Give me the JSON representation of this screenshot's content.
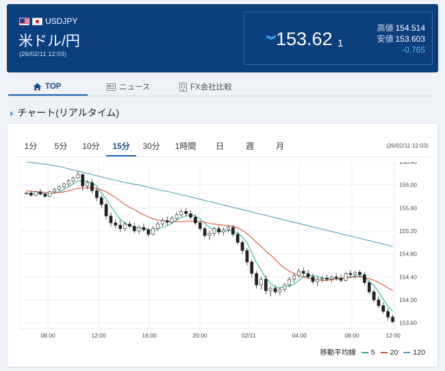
{
  "header": {
    "pair_code": "USDJPY",
    "pair_name": "米ドル/円",
    "timestamp": "(26/02/11 12:03)",
    "price_main": "153.62",
    "price_last_digit": "1",
    "high_label": "高値",
    "high_value": "154.514",
    "low_label": "安値",
    "low_value": "153.603",
    "change": "-0.765",
    "up_color": "#4fb0ff"
  },
  "tabs": [
    {
      "label": "TOP",
      "icon": "home-icon",
      "active": true
    },
    {
      "label": "ニュース",
      "icon": "newspaper-icon",
      "active": false
    },
    {
      "label": "FX会社比較",
      "icon": "building-icon",
      "active": false
    }
  ],
  "section": {
    "title": "チャート(リアルタイム)"
  },
  "intervals": [
    "1分",
    "5分",
    "10分",
    "15分",
    "30分",
    "1時間",
    "日",
    "週",
    "月"
  ],
  "active_interval": "15分",
  "chart_timestamp": "(26/02/11 12:03)",
  "legend": {
    "label": "移動平均線",
    "items": [
      "5",
      "20",
      "120"
    ]
  },
  "chart_data": {
    "type": "candlestick",
    "x_ticks": [
      "08:00",
      "12:00",
      "16:00",
      "20:00",
      "02/11",
      "04:00",
      "08:00",
      "12:00"
    ],
    "y_ticks": [
      "156.40",
      "156.00",
      "155.60",
      "155.20",
      "154.80",
      "154.40",
      "154.00",
      "153.60"
    ],
    "ylim": [
      153.5,
      156.4
    ],
    "up_color": "#ffffff",
    "down_color": "#222222",
    "candles": [
      [
        155.86,
        155.88,
        155.83,
        155.86
      ],
      [
        155.86,
        155.89,
        155.8,
        155.82
      ],
      [
        155.82,
        155.9,
        155.8,
        155.88
      ],
      [
        155.88,
        155.93,
        155.82,
        155.84
      ],
      [
        155.84,
        155.87,
        155.78,
        155.8
      ],
      [
        155.8,
        155.9,
        155.79,
        155.88
      ],
      [
        155.88,
        155.95,
        155.85,
        155.92
      ],
      [
        155.92,
        155.99,
        155.9,
        155.97
      ],
      [
        155.97,
        156.04,
        155.94,
        156.02
      ],
      [
        156.02,
        156.1,
        155.98,
        156.07
      ],
      [
        156.07,
        156.15,
        156.03,
        156.12
      ],
      [
        156.12,
        156.24,
        156.1,
        156.18
      ],
      [
        156.18,
        156.22,
        155.9,
        155.98
      ],
      [
        155.98,
        156.08,
        155.92,
        156.04
      ],
      [
        156.04,
        156.1,
        155.85,
        155.9
      ],
      [
        155.9,
        155.95,
        155.72,
        155.78
      ],
      [
        155.78,
        155.82,
        155.6,
        155.66
      ],
      [
        155.66,
        155.7,
        155.4,
        155.46
      ],
      [
        155.46,
        155.52,
        155.28,
        155.34
      ],
      [
        155.34,
        155.4,
        155.24,
        155.3
      ],
      [
        155.3,
        155.38,
        155.18,
        155.24
      ],
      [
        155.24,
        155.36,
        155.2,
        155.32
      ],
      [
        155.32,
        155.38,
        155.25,
        155.28
      ],
      [
        155.28,
        155.34,
        155.16,
        155.2
      ],
      [
        155.2,
        155.3,
        155.14,
        155.26
      ],
      [
        155.26,
        155.33,
        155.18,
        155.22
      ],
      [
        155.22,
        155.26,
        155.1,
        155.14
      ],
      [
        155.14,
        155.28,
        155.12,
        155.24
      ],
      [
        155.24,
        155.36,
        155.2,
        155.32
      ],
      [
        155.32,
        155.42,
        155.28,
        155.38
      ],
      [
        155.38,
        155.45,
        155.3,
        155.35
      ],
      [
        155.35,
        155.46,
        155.32,
        155.42
      ],
      [
        155.42,
        155.52,
        155.38,
        155.48
      ],
      [
        155.48,
        155.58,
        155.44,
        155.54
      ],
      [
        155.54,
        155.6,
        155.46,
        155.5
      ],
      [
        155.5,
        155.56,
        155.4,
        155.44
      ],
      [
        155.44,
        155.48,
        155.3,
        155.34
      ],
      [
        155.34,
        155.38,
        155.2,
        155.24
      ],
      [
        155.24,
        155.28,
        155.08,
        155.12
      ],
      [
        155.12,
        155.2,
        155.04,
        155.16
      ],
      [
        155.16,
        155.28,
        155.1,
        155.24
      ],
      [
        155.24,
        155.3,
        155.14,
        155.18
      ],
      [
        155.18,
        155.26,
        155.12,
        155.22
      ],
      [
        155.22,
        155.3,
        155.18,
        155.26
      ],
      [
        155.26,
        155.3,
        155.1,
        155.14
      ],
      [
        155.14,
        155.18,
        154.96,
        155.0
      ],
      [
        155.0,
        155.04,
        154.8,
        154.86
      ],
      [
        154.86,
        154.9,
        154.6,
        154.66
      ],
      [
        154.66,
        154.7,
        154.4,
        154.46
      ],
      [
        154.46,
        154.5,
        154.2,
        154.26
      ],
      [
        154.26,
        154.4,
        154.18,
        154.36
      ],
      [
        154.36,
        154.42,
        154.1,
        154.16
      ],
      [
        154.16,
        154.24,
        154.06,
        154.2
      ],
      [
        154.2,
        154.26,
        154.1,
        154.14
      ],
      [
        154.14,
        154.22,
        154.08,
        154.18
      ],
      [
        154.18,
        154.3,
        154.14,
        154.26
      ],
      [
        154.26,
        154.4,
        154.22,
        154.36
      ],
      [
        154.36,
        154.46,
        154.3,
        154.42
      ],
      [
        154.42,
        154.54,
        154.38,
        154.5
      ],
      [
        154.5,
        154.56,
        154.4,
        154.46
      ],
      [
        154.46,
        154.52,
        154.36,
        154.4
      ],
      [
        154.4,
        154.46,
        154.28,
        154.32
      ],
      [
        154.32,
        154.4,
        154.24,
        154.36
      ],
      [
        154.36,
        154.42,
        154.3,
        154.38
      ],
      [
        154.38,
        154.44,
        154.32,
        154.36
      ],
      [
        154.36,
        154.42,
        154.3,
        154.4
      ],
      [
        154.4,
        154.46,
        154.34,
        154.38
      ],
      [
        154.38,
        154.44,
        154.3,
        154.34
      ],
      [
        154.34,
        154.48,
        154.32,
        154.46
      ],
      [
        154.46,
        154.52,
        154.4,
        154.44
      ],
      [
        154.44,
        154.5,
        154.38,
        154.48
      ],
      [
        154.48,
        154.52,
        154.4,
        154.44
      ],
      [
        154.44,
        154.48,
        154.26,
        154.3
      ],
      [
        154.3,
        154.34,
        154.1,
        154.14
      ],
      [
        154.14,
        154.18,
        153.96,
        154.0
      ],
      [
        154.0,
        154.06,
        153.86,
        153.9
      ],
      [
        153.9,
        153.96,
        153.76,
        153.8
      ],
      [
        153.8,
        153.86,
        153.64,
        153.7
      ],
      [
        153.7,
        153.74,
        153.6,
        153.62
      ]
    ],
    "moving_averages": [
      {
        "name": "5",
        "color": "#2bb39a",
        "values": [
          155.86,
          155.84,
          155.85,
          155.86,
          155.84,
          155.84,
          155.86,
          155.88,
          155.92,
          155.97,
          156.02,
          156.07,
          156.07,
          156.06,
          156.04,
          155.98,
          155.86,
          155.76,
          155.63,
          155.51,
          155.4,
          155.33,
          155.3,
          155.27,
          155.25,
          155.24,
          155.22,
          155.21,
          155.24,
          155.26,
          155.29,
          155.34,
          155.39,
          155.43,
          155.46,
          155.48,
          155.46,
          155.41,
          155.33,
          155.26,
          155.22,
          155.19,
          155.18,
          155.21,
          155.2,
          155.16,
          155.1,
          154.99,
          154.82,
          154.65,
          154.52,
          154.38,
          154.29,
          154.22,
          154.21,
          154.23,
          154.24,
          154.27,
          154.34,
          154.4,
          154.43,
          154.42,
          154.41,
          154.38,
          154.37,
          154.37,
          154.38,
          154.37,
          154.39,
          154.4,
          154.41,
          154.42,
          154.39,
          154.32,
          154.25,
          154.14,
          154.01,
          153.89,
          153.8
        ]
      },
      {
        "name": "20",
        "color": "#d9533a",
        "values": [
          155.9,
          155.89,
          155.88,
          155.88,
          155.87,
          155.86,
          155.86,
          155.87,
          155.88,
          155.9,
          155.92,
          155.94,
          155.95,
          155.95,
          155.95,
          155.94,
          155.91,
          155.88,
          155.83,
          155.78,
          155.72,
          155.66,
          155.61,
          155.57,
          155.52,
          155.48,
          155.44,
          155.41,
          155.39,
          155.38,
          155.37,
          155.36,
          155.36,
          155.36,
          155.37,
          155.37,
          155.37,
          155.36,
          155.35,
          155.33,
          155.32,
          155.31,
          155.3,
          155.29,
          155.28,
          155.25,
          155.21,
          155.15,
          155.08,
          155.0,
          154.93,
          154.85,
          154.78,
          154.7,
          154.62,
          154.55,
          154.5,
          154.46,
          154.43,
          154.4,
          154.38,
          154.36,
          154.35,
          154.34,
          154.34,
          154.35,
          154.36,
          154.37,
          154.38,
          154.39,
          154.4,
          154.4,
          154.39,
          154.37,
          154.34,
          154.3,
          154.26,
          154.21,
          154.16
        ]
      },
      {
        "name": "120",
        "color": "#4a9fb5",
        "values": [
          156.4,
          156.39,
          156.38,
          156.37,
          156.36,
          156.35,
          156.33,
          156.32,
          156.3,
          156.28,
          156.26,
          156.24,
          156.22,
          156.2,
          156.18,
          156.16,
          156.14,
          156.12,
          156.1,
          156.08,
          156.06,
          156.04,
          156.03,
          156.01,
          156.0,
          155.98,
          155.96,
          155.94,
          155.92,
          155.9,
          155.89,
          155.87,
          155.85,
          155.83,
          155.81,
          155.79,
          155.77,
          155.75,
          155.73,
          155.71,
          155.69,
          155.67,
          155.65,
          155.63,
          155.61,
          155.59,
          155.57,
          155.55,
          155.53,
          155.51,
          155.49,
          155.47,
          155.45,
          155.43,
          155.41,
          155.39,
          155.37,
          155.35,
          155.33,
          155.31,
          155.29,
          155.27,
          155.25,
          155.23,
          155.21,
          155.19,
          155.17,
          155.15,
          155.13,
          155.11,
          155.09,
          155.07,
          155.05,
          155.03,
          155.01,
          154.99,
          154.97,
          154.95,
          154.93
        ]
      }
    ]
  }
}
